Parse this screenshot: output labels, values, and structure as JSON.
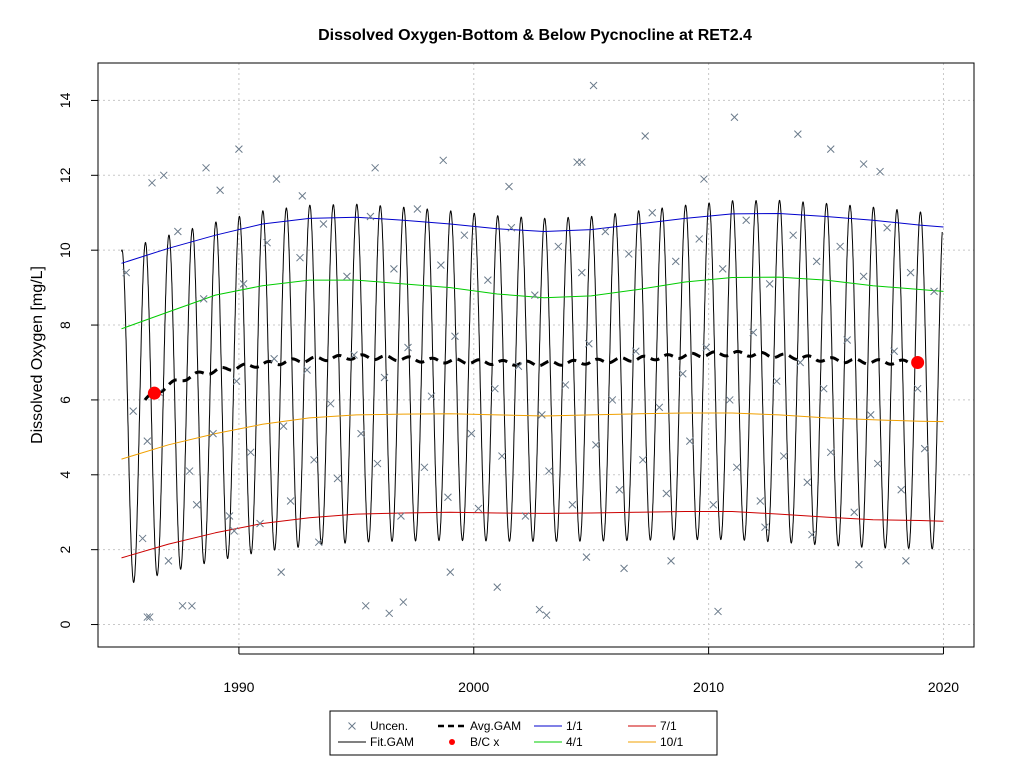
{
  "chart_data": {
    "type": "scatter",
    "title": "Dissolved Oxygen-Bottom & Below Pycnocline at RET2.4",
    "xlabel": "",
    "ylabel": "Dissolved Oxygen [mg/L]",
    "xlim": [
      1984.0,
      2021.3
    ],
    "ylim": [
      -0.6,
      15.0
    ],
    "x_ticks": [
      1990,
      2000,
      2010,
      2020
    ],
    "y_ticks": [
      0,
      2,
      4,
      6,
      8,
      10,
      12,
      14
    ],
    "grid": true,
    "legend_position": "bottom",
    "colors": {
      "points": "#6b7b8b",
      "fit_gam": "#000000",
      "avg_gam": "#000000",
      "bc_point": "#ff0000",
      "q1_1": "#0000cc",
      "q4_1": "#00cc00",
      "q7_1": "#cc0000",
      "q10_1": "#f0a000",
      "grid": "#c8c8c8"
    },
    "legend": [
      {
        "label": "Uncen.",
        "key": "uncen",
        "kind": "cross"
      },
      {
        "label": "Avg.GAM",
        "key": "avg_gam",
        "kind": "dashed"
      },
      {
        "label": "1/1",
        "key": "q1_1",
        "kind": "line"
      },
      {
        "label": "7/1",
        "key": "q7_1",
        "kind": "line"
      },
      {
        "label": "Fit.GAM",
        "key": "fit_gam",
        "kind": "line"
      },
      {
        "label": "B/C x",
        "key": "bc_point",
        "kind": "dot"
      },
      {
        "label": "4/1",
        "key": "q4_1",
        "kind": "line"
      },
      {
        "label": "10/1",
        "key": "q10_1",
        "kind": "line"
      }
    ],
    "series": [
      {
        "name": "1/1",
        "key": "q1_1",
        "x": [
          1985.0,
          1987.0,
          1989.0,
          1991.0,
          1993.0,
          1995.0,
          1997.0,
          1999.0,
          2001.0,
          2003.0,
          2005.0,
          2007.0,
          2009.0,
          2011.0,
          2013.0,
          2015.0,
          2017.0,
          2019.0,
          2020.0
        ],
        "y": [
          9.65,
          10.05,
          10.4,
          10.7,
          10.85,
          10.88,
          10.8,
          10.7,
          10.57,
          10.5,
          10.55,
          10.7,
          10.85,
          10.97,
          10.98,
          10.9,
          10.8,
          10.67,
          10.62
        ]
      },
      {
        "name": "4/1",
        "key": "q4_1",
        "x": [
          1985.0,
          1987.0,
          1989.0,
          1991.0,
          1993.0,
          1995.0,
          1997.0,
          1999.0,
          2001.0,
          2003.0,
          2005.0,
          2007.0,
          2009.0,
          2011.0,
          2013.0,
          2015.0,
          2017.0,
          2019.0,
          2020.0
        ],
        "y": [
          7.9,
          8.35,
          8.8,
          9.05,
          9.2,
          9.2,
          9.1,
          9.0,
          8.83,
          8.73,
          8.78,
          8.95,
          9.15,
          9.27,
          9.28,
          9.2,
          9.05,
          8.95,
          8.9
        ]
      },
      {
        "name": "7/1",
        "key": "q7_1",
        "x": [
          1985.0,
          1987.0,
          1989.0,
          1991.0,
          1993.0,
          1995.0,
          1997.0,
          1999.0,
          2001.0,
          2003.0,
          2005.0,
          2007.0,
          2009.0,
          2011.0,
          2013.0,
          2015.0,
          2017.0,
          2019.0,
          2020.0
        ],
        "y": [
          1.78,
          2.15,
          2.45,
          2.7,
          2.85,
          2.95,
          2.98,
          3.0,
          2.98,
          2.97,
          2.98,
          3.0,
          3.02,
          3.02,
          2.95,
          2.87,
          2.8,
          2.78,
          2.76
        ]
      },
      {
        "name": "10/1",
        "key": "q10_1",
        "x": [
          1985.0,
          1987.0,
          1989.0,
          1991.0,
          1993.0,
          1995.0,
          1997.0,
          1999.0,
          2001.0,
          2003.0,
          2005.0,
          2007.0,
          2009.0,
          2011.0,
          2013.0,
          2015.0,
          2017.0,
          2019.0,
          2020.0
        ],
        "y": [
          4.42,
          4.8,
          5.1,
          5.35,
          5.52,
          5.6,
          5.62,
          5.63,
          5.6,
          5.57,
          5.6,
          5.63,
          5.65,
          5.65,
          5.6,
          5.52,
          5.47,
          5.43,
          5.42
        ]
      },
      {
        "name": "Avg.GAM",
        "key": "avg_gam",
        "x": [
          1986.0,
          1987.0,
          1988.0,
          1989.0,
          1990.0,
          1991.0,
          1992.0,
          1993.0,
          1994.0,
          1995.0,
          1996.0,
          1997.0,
          1998.0,
          1999.0,
          2000.0,
          2001.0,
          2002.0,
          2003.0,
          2004.0,
          2005.0,
          2006.0,
          2007.0,
          2008.0,
          2009.0,
          2010.0,
          2011.0,
          2012.0,
          2013.0,
          2014.0,
          2015.0,
          2016.0,
          2017.0,
          2018.0,
          2019.0
        ],
        "y": [
          6.0,
          6.4,
          6.65,
          6.78,
          6.88,
          6.95,
          7.02,
          7.08,
          7.12,
          7.15,
          7.13,
          7.1,
          7.06,
          7.04,
          7.02,
          7.0,
          6.98,
          6.97,
          6.99,
          7.02,
          7.06,
          7.1,
          7.14,
          7.18,
          7.22,
          7.24,
          7.22,
          7.18,
          7.13,
          7.08,
          7.04,
          7.02,
          7.01,
          7.0
        ]
      },
      {
        "name": "B/C x",
        "key": "bc_point",
        "x": [
          1986.4,
          2018.9
        ],
        "y": [
          6.18,
          7.0
        ]
      },
      {
        "name": "Uncen.",
        "key": "uncen",
        "x": [
          1985.2,
          1985.5,
          1985.9,
          1986.1,
          1986.3,
          1986.6,
          1987.0,
          1987.4,
          1987.9,
          1988.2,
          1988.5,
          1988.9,
          1989.2,
          1989.6,
          1989.9,
          1990.2,
          1990.5,
          1990.9,
          1991.2,
          1991.5,
          1991.9,
          1992.2,
          1992.6,
          1992.9,
          1993.2,
          1993.6,
          1993.9,
          1994.2,
          1994.6,
          1994.9,
          1995.2,
          1995.6,
          1995.9,
          1996.2,
          1996.6,
          1996.9,
          1997.2,
          1997.6,
          1997.9,
          1998.2,
          1998.6,
          1998.9,
          1999.2,
          1999.6,
          1999.9,
          2000.2,
          2000.6,
          2000.9,
          2001.2,
          2001.6,
          2001.9,
          2002.2,
          2002.6,
          2002.9,
          2003.2,
          2003.6,
          2003.9,
          2004.2,
          2004.6,
          2004.9,
          2005.2,
          2005.6,
          2005.9,
          2006.2,
          2006.6,
          2006.9,
          2007.2,
          2007.6,
          2007.9,
          2008.2,
          2008.6,
          2008.9,
          2009.2,
          2009.6,
          2009.9,
          2010.2,
          2010.6,
          2010.9,
          2011.2,
          2011.6,
          2011.9,
          2012.2,
          2012.6,
          2012.9,
          2013.2,
          2013.6,
          2013.9,
          2014.2,
          2014.6,
          2014.9,
          2015.2,
          2015.6,
          2015.9,
          2016.2,
          2016.6,
          2016.9,
          2017.2,
          2017.6,
          2017.9,
          2018.2,
          2018.6,
          2018.9,
          2019.2,
          2019.6,
          1986.2,
          1988.0,
          1989.8,
          1991.8,
          1993.4,
          1995.4,
          1997.0,
          1999.0,
          2001.0,
          2002.8,
          2004.8,
          2006.4,
          2008.4,
          2010.4,
          2012.4,
          2014.4,
          2016.4,
          2018.4,
          2005.1,
          2011.1,
          1990.0,
          2013.8,
          2001.5,
          2004.4,
          2007.3,
          2016.6,
          1986.8,
          1991.6,
          1995.8,
          2009.8,
          2017.3,
          1988.6,
          1992.7,
          1998.7,
          2004.6,
          2015.2,
          1986.1,
          1987.6,
          1996.4,
          2003.1
        ],
        "y": [
          9.4,
          5.7,
          2.3,
          4.9,
          11.8,
          6.2,
          1.7,
          10.5,
          4.1,
          3.2,
          8.7,
          5.1,
          11.6,
          2.9,
          6.5,
          9.1,
          4.6,
          2.7,
          10.2,
          7.1,
          5.3,
          3.3,
          9.8,
          6.8,
          4.4,
          10.7,
          5.9,
          3.9,
          9.3,
          7.2,
          5.1,
          10.9,
          4.3,
          6.6,
          9.5,
          2.9,
          7.4,
          11.1,
          4.2,
          6.1,
          9.6,
          3.4,
          7.7,
          10.4,
          5.1,
          3.1,
          9.2,
          6.3,
          4.5,
          10.6,
          6.9,
          2.9,
          8.8,
          5.6,
          4.1,
          10.1,
          6.4,
          3.2,
          9.4,
          7.5,
          4.8,
          10.5,
          6.0,
          3.6,
          9.9,
          7.3,
          4.4,
          11.0,
          5.8,
          3.5,
          9.7,
          6.7,
          4.9,
          10.3,
          7.4,
          3.2,
          9.5,
          6.0,
          4.2,
          10.8,
          7.8,
          3.3,
          9.1,
          6.5,
          4.5,
          10.4,
          7.0,
          3.8,
          9.7,
          6.3,
          4.6,
          10.1,
          7.6,
          3.0,
          9.3,
          5.6,
          4.3,
          10.6,
          7.3,
          3.6,
          9.4,
          6.3,
          4.7,
          8.9,
          0.2,
          0.5,
          2.5,
          1.4,
          2.2,
          0.5,
          0.6,
          1.4,
          1.0,
          0.4,
          1.8,
          1.5,
          1.7,
          0.35,
          2.6,
          2.4,
          1.6,
          1.7,
          14.4,
          13.55,
          12.7,
          13.1,
          11.7,
          12.35,
          13.05,
          12.3,
          12.0,
          11.9,
          12.2,
          11.9,
          12.1,
          12.2,
          11.45,
          12.4,
          12.35,
          12.7,
          0.2,
          0.5,
          0.3,
          0.25
        ]
      }
    ],
    "fit_gam": {
      "name": "Fit.GAM",
      "key": "fit_gam",
      "start_year": 1985.0,
      "end_year": 2019.95
    }
  }
}
